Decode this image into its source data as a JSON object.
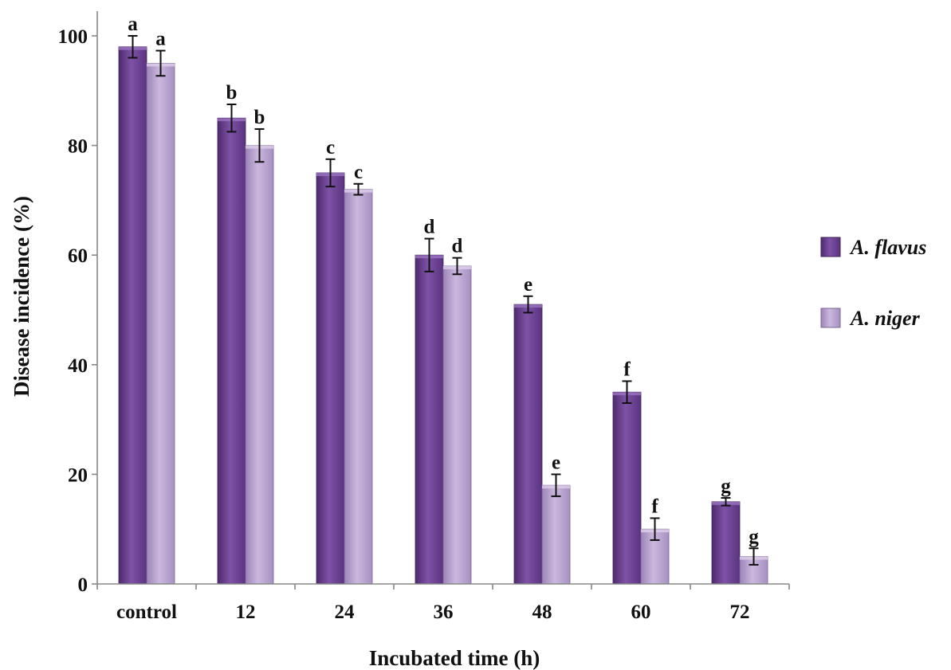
{
  "chart_data": {
    "type": "bar",
    "categories": [
      "control",
      "12",
      "24",
      "36",
      "48",
      "60",
      "72"
    ],
    "xlabel": "Incubated time (h)",
    "ylabel": "Disease incidence (%)",
    "ylim": [
      0,
      100
    ],
    "yticks": [
      0,
      20,
      40,
      60,
      80,
      100
    ],
    "grid": false,
    "legend_position": "right",
    "series": [
      {
        "name": "A. flavus",
        "color": "#6b3f8f",
        "values": [
          98,
          85,
          75,
          60,
          51,
          35,
          15
        ],
        "errors": [
          2,
          2.5,
          2.5,
          3,
          1.5,
          2,
          0.7
        ],
        "letters": [
          "a",
          "b",
          "c",
          "d",
          "e",
          "f",
          "g"
        ]
      },
      {
        "name": "A. niger",
        "color": "#b7a1cc",
        "values": [
          95,
          80,
          72,
          58,
          18,
          10,
          5
        ],
        "errors": [
          2.3,
          3,
          1,
          1.5,
          2,
          2,
          1.5
        ],
        "letters": [
          "a",
          "b",
          "c",
          "d",
          "e",
          "f",
          "g"
        ]
      }
    ]
  }
}
